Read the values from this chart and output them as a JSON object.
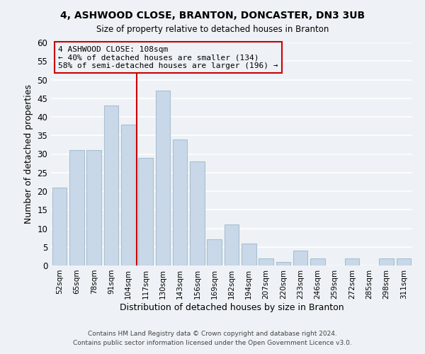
{
  "title": "4, ASHWOOD CLOSE, BRANTON, DONCASTER, DN3 3UB",
  "subtitle": "Size of property relative to detached houses in Branton",
  "xlabel": "Distribution of detached houses by size in Branton",
  "ylabel": "Number of detached properties",
  "bar_labels": [
    "52sqm",
    "65sqm",
    "78sqm",
    "91sqm",
    "104sqm",
    "117sqm",
    "130sqm",
    "143sqm",
    "156sqm",
    "169sqm",
    "182sqm",
    "194sqm",
    "207sqm",
    "220sqm",
    "233sqm",
    "246sqm",
    "259sqm",
    "272sqm",
    "285sqm",
    "298sqm",
    "311sqm"
  ],
  "bar_values": [
    21,
    31,
    31,
    43,
    38,
    29,
    47,
    34,
    28,
    7,
    11,
    6,
    2,
    1,
    4,
    2,
    0,
    2,
    0,
    2,
    2
  ],
  "bar_color": "#c8d8e8",
  "bar_edgecolor": "#a8bfd0",
  "vline_color": "#cc0000",
  "ylim": [
    0,
    60
  ],
  "yticks": [
    0,
    5,
    10,
    15,
    20,
    25,
    30,
    35,
    40,
    45,
    50,
    55,
    60
  ],
  "annotation_text": "4 ASHWOOD CLOSE: 108sqm\n← 40% of detached houses are smaller (134)\n58% of semi-detached houses are larger (196) →",
  "annotation_box_edgecolor": "#cc0000",
  "footer_line1": "Contains HM Land Registry data © Crown copyright and database right 2024.",
  "footer_line2": "Contains public sector information licensed under the Open Government Licence v3.0.",
  "background_color": "#eef2f6",
  "grid_color": "#ffffff"
}
